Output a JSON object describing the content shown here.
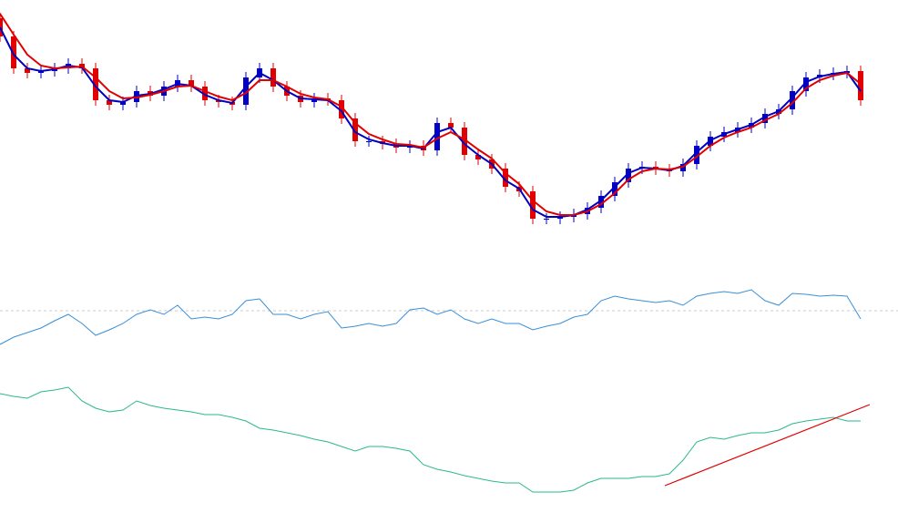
{
  "chart_data": [
    {
      "type": "candlestick",
      "xlim": [
        0,
        986
      ],
      "ylim": [
        0,
        300
      ],
      "x": [
        0,
        15,
        30,
        45,
        60,
        75,
        90,
        105,
        120,
        135,
        150,
        165,
        180,
        195,
        210,
        225,
        240,
        255,
        270,
        285,
        300,
        315,
        330,
        345,
        360,
        375,
        390,
        405,
        420,
        435,
        450,
        465,
        480,
        495,
        510,
        525,
        540,
        555,
        570,
        585,
        600,
        615,
        630,
        645,
        660,
        675,
        690,
        705,
        720,
        735,
        750,
        765,
        780,
        795,
        810,
        825,
        840,
        855,
        870,
        885,
        900,
        915,
        930,
        945
      ],
      "open": [
        280,
        260,
        225,
        220,
        222,
        225,
        230,
        225,
        190,
        185,
        188,
        200,
        195,
        205,
        212,
        205,
        190,
        188,
        185,
        215,
        225,
        205,
        195,
        188,
        192,
        190,
        170,
        145,
        145,
        142,
        138,
        140,
        135,
        165,
        160,
        130,
        125,
        115,
        95,
        90,
        60,
        60,
        62,
        65,
        72,
        85,
        100,
        115,
        117,
        114,
        112,
        120,
        140,
        150,
        155,
        160,
        165,
        175,
        180,
        200,
        215,
        218,
        220,
        222
      ],
      "high": [
        286,
        266,
        231,
        228,
        231,
        236,
        236,
        231,
        196,
        194,
        206,
        206,
        211,
        218,
        218,
        211,
        196,
        194,
        221,
        231,
        231,
        211,
        201,
        198,
        198,
        196,
        176,
        151,
        151,
        148,
        146,
        146,
        171,
        171,
        166,
        136,
        131,
        121,
        101,
        96,
        66,
        68,
        71,
        78,
        91,
        106,
        121,
        123,
        123,
        120,
        126,
        146,
        156,
        161,
        166,
        171,
        181,
        186,
        206,
        221,
        224,
        226,
        228,
        228
      ],
      "low": [
        254,
        219,
        214,
        214,
        216,
        219,
        219,
        184,
        179,
        179,
        182,
        189,
        189,
        199,
        199,
        184,
        182,
        179,
        179,
        209,
        199,
        189,
        182,
        182,
        184,
        164,
        139,
        139,
        136,
        132,
        132,
        129,
        129,
        154,
        124,
        119,
        109,
        89,
        84,
        54,
        54,
        54,
        56,
        59,
        66,
        79,
        94,
        109,
        108,
        106,
        106,
        114,
        134,
        144,
        149,
        154,
        159,
        169,
        174,
        194,
        209,
        212,
        214,
        184
      ],
      "close": [
        260,
        225,
        220,
        222,
        225,
        230,
        225,
        190,
        185,
        188,
        200,
        195,
        205,
        212,
        205,
        190,
        188,
        185,
        215,
        225,
        205,
        195,
        188,
        192,
        190,
        170,
        145,
        145,
        142,
        138,
        140,
        135,
        165,
        160,
        130,
        125,
        115,
        95,
        90,
        60,
        60,
        62,
        65,
        72,
        85,
        100,
        115,
        117,
        114,
        112,
        120,
        140,
        150,
        155,
        160,
        165,
        175,
        180,
        200,
        215,
        218,
        220,
        222,
        190
      ],
      "up_color": "#0000c8",
      "down_color": "#e00000",
      "series": [
        {
          "color": "#0000c0",
          "values": [
            270,
            240,
            225,
            222,
            224,
            228,
            226,
            205,
            190,
            188,
            195,
            197,
            202,
            208,
            206,
            196,
            190,
            187,
            205,
            220,
            212,
            200,
            192,
            191,
            190,
            178,
            155,
            147,
            143,
            140,
            140,
            137,
            155,
            160,
            142,
            130,
            120,
            102,
            93,
            70,
            62,
            62,
            64,
            70,
            80,
            95,
            110,
            116,
            115,
            113,
            118,
            133,
            146,
            153,
            158,
            163,
            172,
            178,
            193,
            210,
            216,
            219,
            221,
            200
          ]
        },
        {
          "color": "#e00000",
          "values": [
            285,
            262,
            240,
            228,
            225,
            226,
            227,
            215,
            200,
            192,
            193,
            196,
            200,
            205,
            206,
            200,
            194,
            190,
            198,
            212,
            212,
            205,
            197,
            193,
            191,
            183,
            165,
            153,
            147,
            142,
            141,
            138,
            148,
            155,
            147,
            136,
            126,
            110,
            98,
            80,
            68,
            64,
            64,
            68,
            76,
            88,
            103,
            112,
            115,
            114,
            117,
            128,
            140,
            149,
            155,
            160,
            168,
            175,
            187,
            203,
            212,
            217,
            220,
            208
          ]
        }
      ]
    },
    {
      "type": "line",
      "xlim": [
        0,
        986
      ],
      "ylim": [
        0,
        100
      ],
      "level": 59,
      "level_color": "#cccccc",
      "x": [
        0,
        15,
        30,
        45,
        60,
        75,
        90,
        105,
        120,
        135,
        150,
        165,
        180,
        195,
        210,
        225,
        240,
        255,
        270,
        285,
        300,
        315,
        330,
        345,
        360,
        375,
        390,
        405,
        420,
        435,
        450,
        465,
        480,
        495,
        510,
        525,
        540,
        555,
        570,
        585,
        600,
        615,
        630,
        645,
        660,
        675,
        690,
        705,
        720,
        735,
        750,
        765,
        780,
        795,
        810,
        825,
        840,
        855,
        870,
        885,
        900,
        915,
        930,
        945
      ],
      "series": [
        {
          "color": "#3a8fd8",
          "values": [
            22,
            30,
            35,
            40,
            48,
            55,
            45,
            32,
            38,
            45,
            55,
            60,
            55,
            65,
            50,
            52,
            50,
            55,
            70,
            72,
            55,
            55,
            50,
            55,
            58,
            40,
            42,
            45,
            42,
            45,
            60,
            62,
            55,
            60,
            50,
            45,
            50,
            45,
            45,
            38,
            42,
            45,
            52,
            55,
            70,
            75,
            72,
            70,
            68,
            70,
            65,
            75,
            78,
            80,
            78,
            82,
            70,
            65,
            78,
            77,
            75,
            76,
            75,
            50
          ]
        }
      ]
    },
    {
      "type": "line",
      "xlim": [
        0,
        986
      ],
      "ylim": [
        0,
        160
      ],
      "x": [
        0,
        15,
        30,
        45,
        60,
        75,
        90,
        105,
        120,
        135,
        150,
        165,
        180,
        195,
        210,
        225,
        240,
        255,
        270,
        285,
        300,
        315,
        330,
        345,
        360,
        375,
        390,
        405,
        420,
        435,
        450,
        465,
        480,
        495,
        510,
        525,
        540,
        555,
        570,
        585,
        600,
        615,
        630,
        645,
        660,
        675,
        690,
        705,
        720,
        735,
        750,
        765,
        780,
        795,
        810,
        825,
        840,
        855,
        870,
        885,
        900,
        915,
        930,
        945
      ],
      "series": [
        {
          "color": "#2ab890",
          "values": [
            128,
            125,
            123,
            130,
            132,
            135,
            120,
            112,
            108,
            110,
            120,
            115,
            112,
            110,
            108,
            105,
            105,
            102,
            98,
            90,
            88,
            85,
            82,
            78,
            75,
            70,
            65,
            70,
            70,
            68,
            65,
            50,
            45,
            42,
            38,
            35,
            32,
            30,
            30,
            20,
            20,
            20,
            22,
            30,
            35,
            35,
            35,
            37,
            37,
            40,
            55,
            75,
            80,
            78,
            82,
            85,
            85,
            88,
            95,
            98,
            100,
            102,
            98,
            98
          ]
        }
      ],
      "trendline": {
        "x": [
          730,
          955
        ],
        "values": [
          27,
          116
        ],
        "color": "#e00000"
      }
    }
  ]
}
